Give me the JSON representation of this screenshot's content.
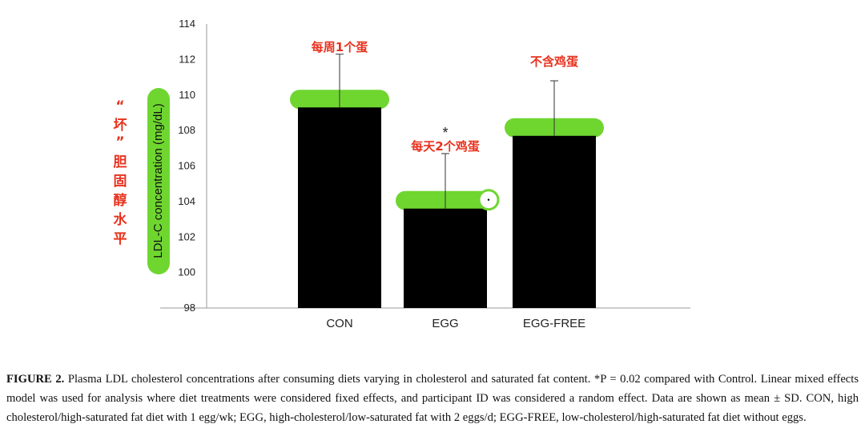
{
  "chart_data": {
    "type": "bar",
    "categories": [
      "CON",
      "EGG",
      "EGG-FREE"
    ],
    "values": [
      109.3,
      103.6,
      107.7
    ],
    "errors": [
      3.0,
      3.1,
      3.1
    ],
    "ylabel": "LDL-C concentration (mg/dL)",
    "ylim": [
      98,
      114
    ],
    "yticks": [
      "98",
      "100",
      "102",
      "104",
      "106",
      "108",
      "110",
      "112",
      "114"
    ],
    "bar_color": "#000000",
    "highlight_color": "#6fd630",
    "annotation_color": "#e8321e",
    "annotations": [
      "每周1个蛋",
      "每天2个鸡蛋",
      "不含鸡蛋"
    ],
    "significance_marker": "*",
    "side_label": [
      "“",
      "坏",
      "”",
      "胆",
      "固",
      "醇",
      "水",
      "平"
    ]
  },
  "caption": {
    "label": "FIGURE 2.",
    "text": "Plasma LDL cholesterol concentrations after consuming diets varying in cholesterol and saturated fat content. *P = 0.02 compared with Control. Linear mixed effects model was used for analysis where diet treatments were considered fixed effects, and participant ID was considered a random effect. Data are shown as mean ± SD. CON, high cholesterol/high-saturated fat diet with 1 egg/wk; EGG, high-cholesterol/low-saturated fat with 2 eggs/d; EGG-FREE, low-cholesterol/high-saturated fat diet without eggs."
  }
}
